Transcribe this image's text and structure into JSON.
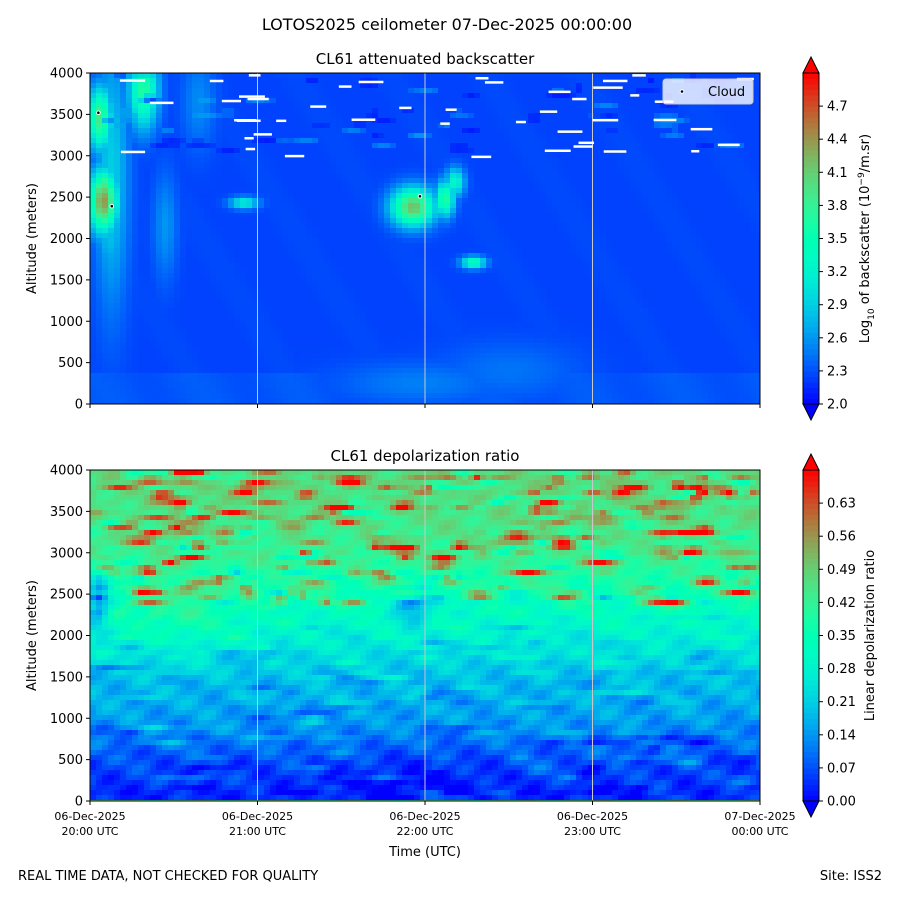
{
  "suptitle": "LOTOS2025 ceilometer 07-Dec-2025 00:00:00",
  "footer": {
    "left": "REAL TIME DATA, NOT CHECKED FOR QUALITY",
    "right": "Site: ISS2"
  },
  "x_axis": {
    "label": "Time (UTC)",
    "range": [
      0,
      4
    ],
    "units": "hours after 06-Dec-2025 20:00 UTC",
    "ticks": [
      {
        "value": 0,
        "line1": "06-Dec-2025",
        "line2": "20:00 UTC"
      },
      {
        "value": 1,
        "line1": "06-Dec-2025",
        "line2": "21:00 UTC"
      },
      {
        "value": 2,
        "line1": "06-Dec-2025",
        "line2": "22:00 UTC"
      },
      {
        "value": 3,
        "line1": "06-Dec-2025",
        "line2": "23:00 UTC"
      },
      {
        "value": 4,
        "line1": "07-Dec-2025",
        "line2": "00:00 UTC"
      }
    ]
  },
  "chart_data": [
    {
      "type": "heatmap",
      "title": "CL61 attenuated backscatter",
      "xlabel": "",
      "ylabel": "Altitude (meters)",
      "ylim": [
        0,
        4000
      ],
      "yticks": [
        0,
        500,
        1000,
        1500,
        2000,
        2500,
        3000,
        3500,
        4000
      ],
      "grid": "vertical lines at time ticks",
      "colormap": "rainbow",
      "colorbar": {
        "label_prefix": "Log",
        "label_sub": "10",
        "label_mid": " of backscatter (10",
        "label_sup": "−9",
        "label_suffix": "/m.sr)",
        "range": [
          2.0,
          5.0
        ],
        "extend": "both",
        "ticks": [
          "2.0",
          "2.3",
          "2.6",
          "2.9",
          "3.2",
          "3.5",
          "3.8",
          "4.1",
          "4.4",
          "4.7"
        ]
      },
      "background_level": 2.25,
      "features": [
        {
          "t": 0.06,
          "alt": 3450,
          "st": 0.05,
          "sa": 260,
          "v": 3.9
        },
        {
          "t": 0.08,
          "alt": 2450,
          "st": 0.06,
          "sa": 260,
          "v": 4.4
        },
        {
          "t": 0.09,
          "alt": 2650,
          "st": 0.03,
          "sa": 120,
          "v": 3.9
        },
        {
          "t": 0.13,
          "alt": 2800,
          "st": 0.07,
          "sa": 1100,
          "v": 2.9
        },
        {
          "t": 0.12,
          "alt": 2000,
          "st": 0.06,
          "sa": 280,
          "v": 2.8
        },
        {
          "t": 0.32,
          "alt": 3800,
          "st": 0.06,
          "sa": 320,
          "v": 3.7
        },
        {
          "t": 0.45,
          "alt": 2150,
          "st": 0.05,
          "sa": 450,
          "v": 2.6
        },
        {
          "t": 0.65,
          "alt": 3650,
          "st": 0.07,
          "sa": 400,
          "v": 2.55
        },
        {
          "t": 0.92,
          "alt": 2430,
          "st": 0.06,
          "sa": 50,
          "v": 3.2
        },
        {
          "t": 1.93,
          "alt": 2380,
          "st": 0.09,
          "sa": 160,
          "v": 4.2
        },
        {
          "t": 1.97,
          "alt": 2300,
          "st": 0.04,
          "sa": 70,
          "v": 3.8
        },
        {
          "t": 2.12,
          "alt": 2480,
          "st": 0.04,
          "sa": 150,
          "v": 3.7
        },
        {
          "t": 2.18,
          "alt": 2680,
          "st": 0.04,
          "sa": 120,
          "v": 3.3
        },
        {
          "t": 2.29,
          "alt": 1710,
          "st": 0.05,
          "sa": 50,
          "v": 3.5
        },
        {
          "t": 1.97,
          "alt": 250,
          "st": 0.35,
          "sa": 180,
          "v": 2.5
        },
        {
          "t": 2.5,
          "alt": 400,
          "st": 0.3,
          "sa": 250,
          "v": 2.45
        }
      ],
      "cloud_markers": {
        "legend": "Cloud",
        "points": [
          {
            "t": 0.05,
            "alt": 3520
          },
          {
            "t": 0.13,
            "alt": 2390
          },
          {
            "t": 1.97,
            "alt": 2510
          }
        ]
      }
    },
    {
      "type": "heatmap",
      "title": "CL61 depolarization ratio",
      "xlabel": "Time (UTC)",
      "ylabel": "Altitude (meters)",
      "ylim": [
        0,
        4000
      ],
      "yticks": [
        0,
        500,
        1000,
        1500,
        2000,
        2500,
        3000,
        3500,
        4000
      ],
      "grid": "vertical lines at time ticks",
      "colormap": "rainbow",
      "colorbar": {
        "label": "Linear depolarization ratio",
        "range": [
          0.0,
          0.7
        ],
        "extend": "both",
        "ticks": [
          "0.00",
          "0.07",
          "0.14",
          "0.21",
          "0.28",
          "0.35",
          "0.42",
          "0.49",
          "0.56",
          "0.63"
        ]
      },
      "profile": [
        {
          "alt": 0,
          "v": 0.03
        },
        {
          "alt": 500,
          "v": 0.07
        },
        {
          "alt": 1000,
          "v": 0.15
        },
        {
          "alt": 1500,
          "v": 0.19
        },
        {
          "alt": 2000,
          "v": 0.28
        },
        {
          "alt": 2500,
          "v": 0.36
        },
        {
          "alt": 3000,
          "v": 0.43
        },
        {
          "alt": 3500,
          "v": 0.46
        },
        {
          "alt": 4000,
          "v": 0.47
        }
      ]
    }
  ]
}
